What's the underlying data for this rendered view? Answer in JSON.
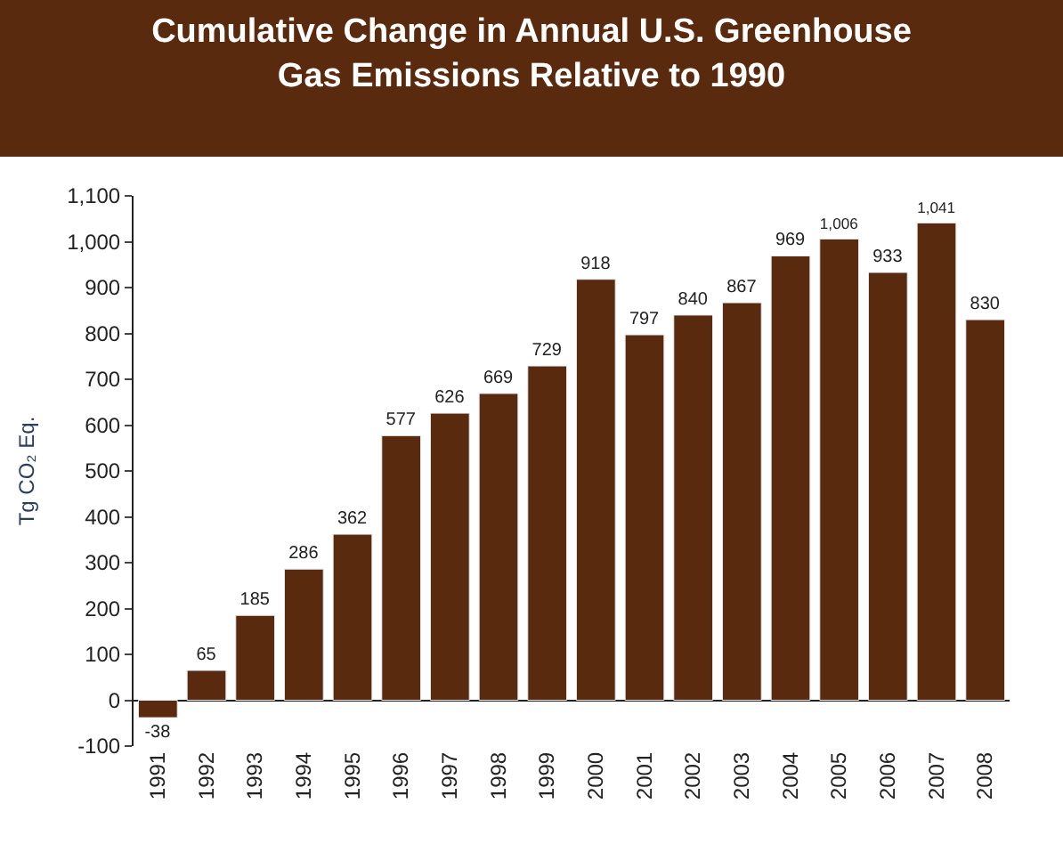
{
  "chart_data": {
    "type": "bar",
    "title": "Cumulative Change in Annual U.S. Greenhouse Gas Emissions Relative to 1990",
    "ylabel": "Tg CO₂ Eq.",
    "categories": [
      "1991",
      "1992",
      "1993",
      "1994",
      "1995",
      "1996",
      "1997",
      "1998",
      "1999",
      "2000",
      "2001",
      "2002",
      "2003",
      "2004",
      "2005",
      "2006",
      "2007",
      "2008"
    ],
    "values": [
      -38,
      65,
      185,
      286,
      362,
      577,
      626,
      669,
      729,
      918,
      797,
      840,
      867,
      969,
      1006,
      933,
      1041,
      830
    ],
    "value_labels": [
      "-38",
      "65",
      "185",
      "286",
      "362",
      "577",
      "626",
      "669",
      "729",
      "918",
      "797",
      "840",
      "867",
      "969",
      "1,006",
      "933",
      "1,041",
      "830"
    ],
    "color": "#5a2a0e",
    "ylim": [
      -100,
      1100
    ],
    "yticks": [
      {
        "value": -100,
        "label": "-100"
      },
      0,
      100,
      200,
      300,
      400,
      500,
      600,
      700,
      800,
      900,
      {
        "value": 1000,
        "label": "1,000"
      },
      {
        "value": 1100,
        "label": "1,100"
      }
    ],
    "legend": false
  }
}
